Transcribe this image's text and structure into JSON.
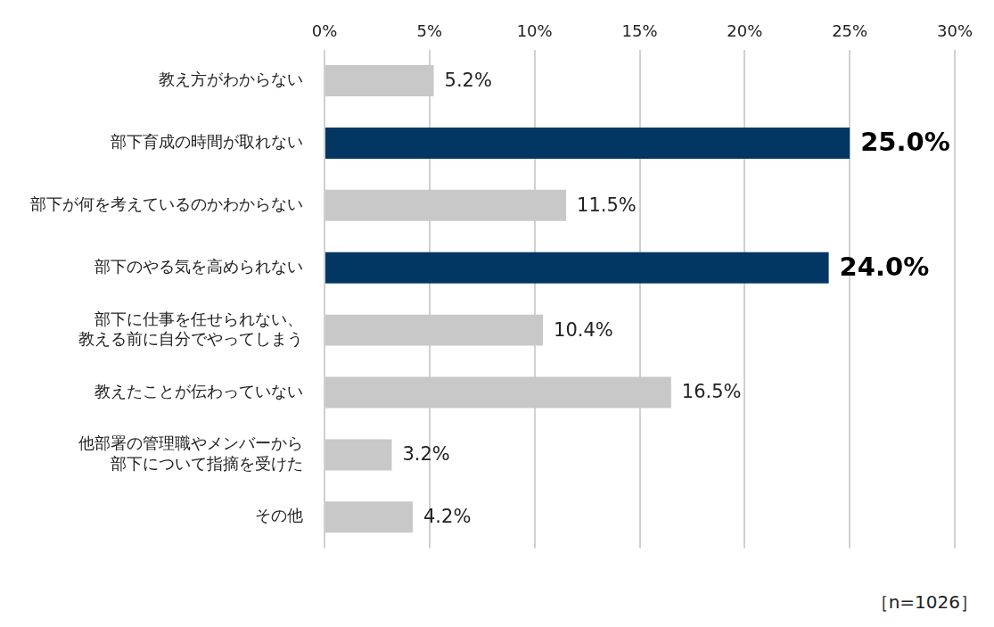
{
  "chart_data": {
    "type": "bar",
    "orientation": "horizontal",
    "categories": [
      "教え方がわからない",
      "部下育成の時間が取れない",
      "部下が何を考えているのかわからない",
      "部下のやる気を高められない",
      "部下に仕事を任せられない、\n教える前に自分でやってしまう",
      "教えたことが伝わっていない",
      "他部署の管理職やメンバーから\n部下について指摘を受けた",
      "その他"
    ],
    "values": [
      5.2,
      25.0,
      11.5,
      24.0,
      10.4,
      16.5,
      3.2,
      4.2
    ],
    "value_labels": [
      "5.2%",
      "25.0%",
      "11.5%",
      "24.0%",
      "10.4%",
      "16.5%",
      "3.2%",
      "4.2%"
    ],
    "colors": [
      "#c8c8c8",
      "#023764",
      "#c8c8c8",
      "#023764",
      "#c8c8c8",
      "#c8c8c8",
      "#c8c8c8",
      "#c8c8c8"
    ],
    "xlim": [
      0,
      30
    ],
    "xticks": [
      {
        "value": 0,
        "label": "0%"
      },
      {
        "value": 5,
        "label": "5%"
      },
      {
        "value": 10,
        "label": "10%"
      },
      {
        "value": 15,
        "label": "15%"
      },
      {
        "value": 20,
        "label": "20%"
      },
      {
        "value": 25,
        "label": "25%"
      },
      {
        "value": 30,
        "label": "30%"
      }
    ],
    "grid": true,
    "data_labels": true,
    "annotation": "［n=1026］"
  }
}
